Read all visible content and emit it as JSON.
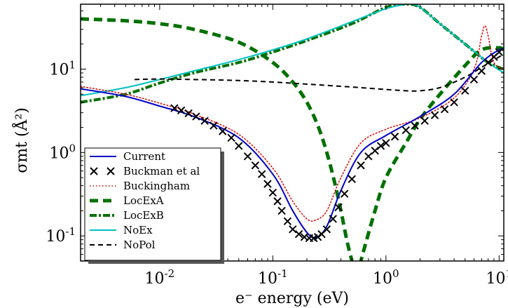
{
  "chart_data": {
    "type": "line",
    "title": "",
    "xlabel": "e⁻  energy (eV)",
    "ylabel": "σmt (Å²)",
    "xscale": "log",
    "yscale": "log",
    "xlim": [
      0.002,
      11
    ],
    "ylim": [
      0.05,
      60
    ],
    "grid": false,
    "legend_position": "lower-left",
    "x_ticks": [
      {
        "base": "10",
        "exp": "-2",
        "value": 0.01
      },
      {
        "base": "10",
        "exp": "-1",
        "value": 0.1
      },
      {
        "base": "10",
        "exp": "0",
        "value": 1
      },
      {
        "base": "10",
        "exp": "1",
        "value": 10
      }
    ],
    "y_ticks": [
      {
        "label": "10",
        "exp": "-1",
        "value": 0.1
      },
      {
        "label": "10",
        "exp": "0",
        "value": 1
      },
      {
        "label": "10",
        "exp": "1",
        "value": 10
      }
    ],
    "series": [
      {
        "name": "Current",
        "style": "solid",
        "color": "#0000cc",
        "width": 2,
        "x": [
          0.002,
          0.005,
          0.01,
          0.02,
          0.05,
          0.1,
          0.15,
          0.2,
          0.24,
          0.3,
          0.4,
          0.6,
          1.0,
          2.0,
          4.0,
          7.0,
          10.0,
          11.0
        ],
        "y": [
          5.8,
          4.7,
          3.6,
          2.7,
          1.5,
          0.55,
          0.2,
          0.11,
          0.095,
          0.13,
          0.35,
          1.0,
          1.6,
          2.7,
          5.0,
          12.0,
          17.0,
          17.0
        ]
      },
      {
        "name": "Buckman et al",
        "style": "marker-x",
        "color": "#000000",
        "width": 2,
        "x": [
          0.0135,
          0.0155,
          0.018,
          0.021,
          0.025,
          0.03,
          0.036,
          0.043,
          0.05,
          0.06,
          0.07,
          0.08,
          0.09,
          0.1,
          0.11,
          0.12,
          0.135,
          0.15,
          0.17,
          0.19,
          0.21,
          0.23,
          0.25,
          0.27,
          0.3,
          0.34,
          0.38,
          0.43,
          0.5,
          0.6,
          0.7,
          0.8,
          0.9,
          1.0,
          1.2,
          1.5,
          1.8,
          2.2,
          2.7,
          3.3,
          4.0,
          5.0,
          6.0,
          7.0,
          8.0,
          9.0,
          10.0
        ],
        "y": [
          3.4,
          3.2,
          2.95,
          2.7,
          2.4,
          2.1,
          1.8,
          1.5,
          1.2,
          0.9,
          0.7,
          0.55,
          0.42,
          0.33,
          0.26,
          0.2,
          0.15,
          0.12,
          0.105,
          0.097,
          0.094,
          0.094,
          0.097,
          0.105,
          0.12,
          0.16,
          0.22,
          0.32,
          0.48,
          0.7,
          0.9,
          1.05,
          1.2,
          1.3,
          1.55,
          1.85,
          2.1,
          2.4,
          2.8,
          3.3,
          4.0,
          5.5,
          7.5,
          9.5,
          12.0,
          14.0,
          16.0
        ]
      },
      {
        "name": "Buckingham",
        "style": "dotted",
        "color": "#dd0000",
        "width": 1.5,
        "x": [
          0.002,
          0.005,
          0.01,
          0.02,
          0.05,
          0.1,
          0.15,
          0.2,
          0.24,
          0.3,
          0.4,
          0.6,
          1.0,
          2.0,
          4.0,
          6.0,
          7.0,
          7.5,
          8.0,
          9.0,
          11.0
        ],
        "y": [
          6.2,
          5.0,
          3.9,
          2.9,
          1.65,
          0.65,
          0.26,
          0.16,
          0.155,
          0.2,
          0.5,
          1.3,
          1.9,
          2.6,
          4.5,
          10.0,
          25.0,
          33.0,
          25.0,
          12.0,
          10.0
        ]
      },
      {
        "name": "LocExA",
        "style": "dashed-thick",
        "color": "#007000",
        "width": 5,
        "x": [
          0.002,
          0.005,
          0.01,
          0.02,
          0.05,
          0.1,
          0.15,
          0.2,
          0.25,
          0.3,
          0.35,
          0.4,
          0.45,
          0.5,
          0.55,
          0.6,
          0.8,
          1.0,
          1.5,
          2.0,
          3.0,
          5.0,
          7.0,
          10.0,
          11.0
        ],
        "y": [
          40.0,
          38.0,
          35.0,
          30.0,
          21.0,
          12.0,
          7.0,
          4.0,
          2.1,
          1.0,
          0.45,
          0.2,
          0.09,
          0.05,
          0.03,
          0.05,
          0.2,
          0.5,
          1.3,
          2.5,
          5.0,
          11.0,
          17.0,
          18.0,
          17.0
        ]
      },
      {
        "name": "LocExB",
        "style": "dashdot-thick",
        "color": "#007000",
        "width": 4,
        "x": [
          0.002,
          0.005,
          0.01,
          0.02,
          0.05,
          0.1,
          0.2,
          0.5,
          1.0,
          1.5,
          2.0,
          3.0,
          5.0,
          8.0,
          11.0
        ],
        "y": [
          4.0,
          5.0,
          6.8,
          9.0,
          12.0,
          16.0,
          22.0,
          35.0,
          55.0,
          60.0,
          55.0,
          35.0,
          20.0,
          12.0,
          10.0
        ]
      },
      {
        "name": "NoEx",
        "style": "solid",
        "color": "#00c0c0",
        "width": 2,
        "x": [
          0.002,
          0.005,
          0.01,
          0.02,
          0.05,
          0.1,
          0.2,
          0.5,
          1.0,
          1.5,
          1.7,
          2.0,
          3.0,
          5.0,
          8.0,
          11.0
        ],
        "y": [
          4.8,
          6.0,
          7.5,
          9.5,
          13.0,
          17.0,
          23.0,
          37.0,
          53.0,
          60.0,
          60.0,
          55.0,
          35.0,
          20.0,
          12.0,
          9.0
        ]
      },
      {
        "name": "NoPol",
        "style": "dashed",
        "color": "#000000",
        "width": 2,
        "x": [
          0.006,
          0.01,
          0.02,
          0.05,
          0.1,
          0.2,
          0.5,
          1.0,
          1.5,
          2.0,
          3.0,
          5.0,
          7.0,
          10.0,
          11.0
        ],
        "y": [
          7.5,
          7.6,
          7.5,
          7.3,
          7.0,
          6.6,
          6.1,
          5.7,
          5.5,
          5.5,
          6.0,
          8.0,
          10.5,
          14.0,
          15.0
        ]
      }
    ]
  }
}
